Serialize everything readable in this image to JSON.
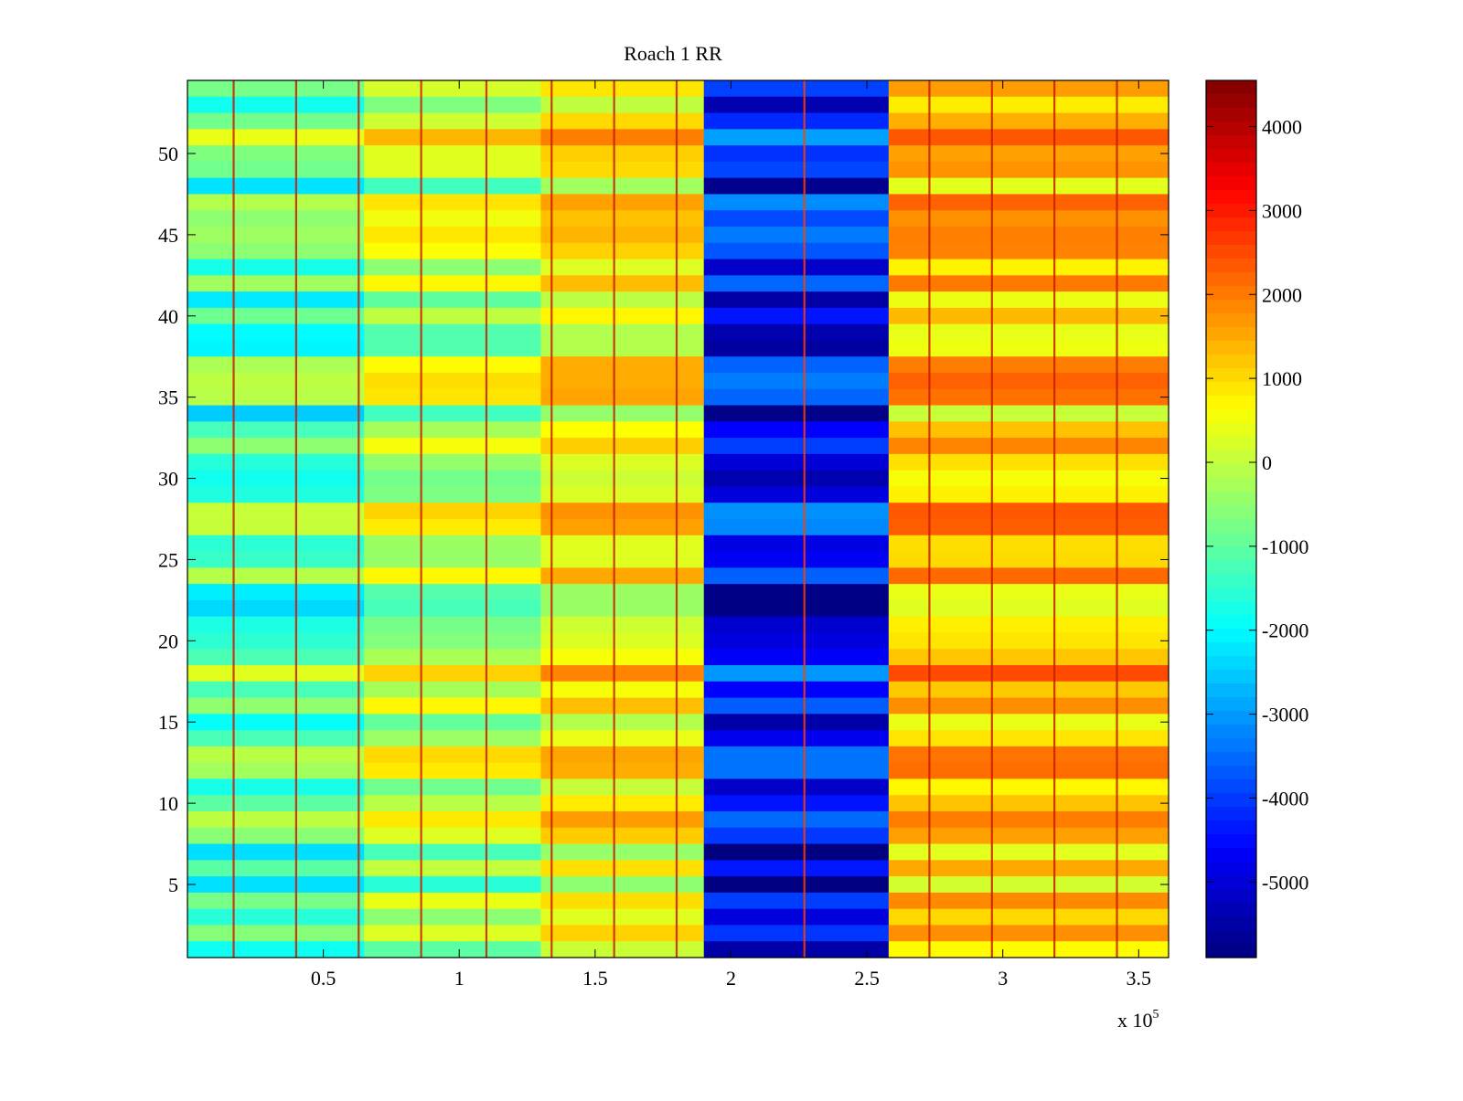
{
  "chart_data": {
    "type": "heatmap",
    "title": "Roach 1 RR",
    "xlabel": "",
    "ylabel": "",
    "x_exponent_label": "x 10",
    "x_exponent": "5",
    "xlim": [
      0,
      3.61
    ],
    "ylim": [
      0.5,
      54.5
    ],
    "x_ticks": [
      0.5,
      1,
      1.5,
      2,
      2.5,
      3,
      3.5
    ],
    "x_tick_labels": [
      "0.5",
      "1",
      "1.5",
      "2",
      "2.5",
      "3",
      "3.5"
    ],
    "y_ticks": [
      5,
      10,
      15,
      20,
      25,
      30,
      35,
      40,
      45,
      50
    ],
    "y_tick_labels": [
      "5",
      "10",
      "15",
      "20",
      "25",
      "30",
      "35",
      "40",
      "45",
      "50"
    ],
    "colorbar": {
      "colormap": "jet",
      "range": [
        -5900,
        4550
      ],
      "ticks": [
        4000,
        3000,
        2000,
        1000,
        0,
        -1000,
        -2000,
        -3000,
        -4000,
        -5000
      ],
      "tick_labels": [
        "4000",
        "3000",
        "2000",
        "1000",
        "0",
        "-1000",
        "-2000",
        "-3000",
        "-4000",
        "-5000"
      ]
    },
    "rows": 54,
    "x_segments": [
      {
        "x_start": 0.0,
        "x_end": 0.65,
        "base_value": -1200
      },
      {
        "x_start": 0.65,
        "x_end": 1.3,
        "base_value": -200
      },
      {
        "x_start": 1.3,
        "x_end": 1.9,
        "base_value": 600
      },
      {
        "x_start": 1.9,
        "x_end": 2.58,
        "base_value": -4600
      },
      {
        "x_start": 2.58,
        "x_end": 3.61,
        "base_value": 1200
      }
    ],
    "spike_lines_x": [
      0.17,
      0.4,
      0.63,
      0.86,
      1.1,
      1.34,
      1.57,
      1.8,
      2.27,
      2.73,
      2.96,
      3.19,
      3.42
    ]
  }
}
